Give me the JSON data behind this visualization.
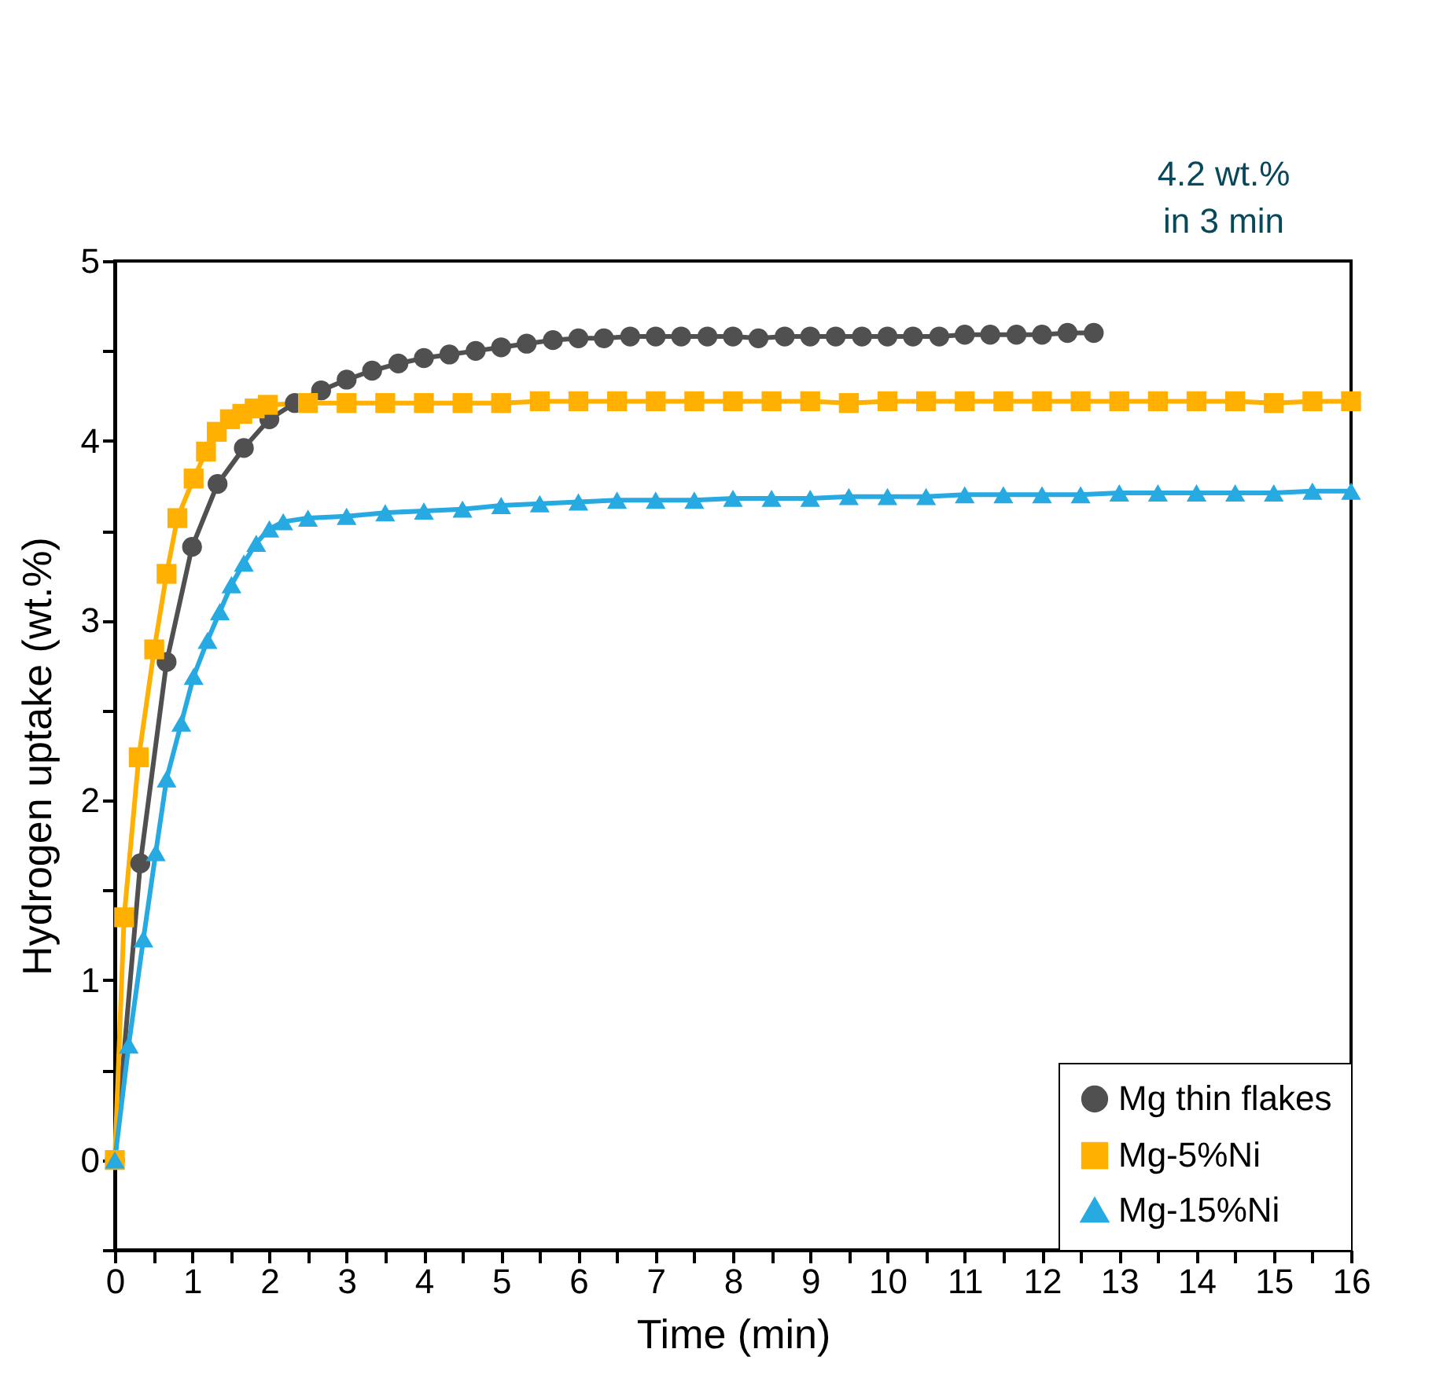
{
  "chart_data": {
    "type": "line",
    "xlabel": "Time (min)",
    "ylabel": "Hydrogen uptake (wt.%)",
    "xlim": [
      0,
      16
    ],
    "ylim": [
      -0.5,
      5
    ],
    "xticks": [
      0,
      {
        "value": 0.5,
        "label": null
      },
      1,
      {
        "value": 1.5,
        "label": null
      },
      2,
      {
        "value": 2.5,
        "label": null
      },
      3,
      {
        "value": 3.5,
        "label": null
      },
      4,
      {
        "value": 4.5,
        "label": null
      },
      5,
      {
        "value": 5.5,
        "label": null
      },
      6,
      {
        "value": 6.5,
        "label": null
      },
      7,
      {
        "value": 7.5,
        "label": null
      },
      8,
      {
        "value": 8.5,
        "label": null
      },
      9,
      {
        "value": 9.5,
        "label": null
      },
      10,
      {
        "value": 10.5,
        "label": null
      },
      11,
      {
        "value": 11.5,
        "label": null
      },
      12,
      {
        "value": 12.5,
        "label": null
      },
      13,
      {
        "value": 13.5,
        "label": null
      },
      14,
      {
        "value": 14.5,
        "label": null
      },
      15,
      {
        "value": 15.5,
        "label": null
      },
      16
    ],
    "yticks": [
      {
        "value": -0.5,
        "label": null
      },
      0,
      {
        "value": 0.5,
        "label": null
      },
      1,
      {
        "value": 1.5,
        "label": null
      },
      2,
      {
        "value": 2.5,
        "label": null
      },
      3,
      {
        "value": 3.5,
        "label": null
      },
      4,
      {
        "value": 4.5,
        "label": null
      },
      5
    ],
    "grid": false,
    "legend": "bottom right",
    "line_style": "solid",
    "annotations": [
      "4.2 wt.%\nin 3 min"
    ],
    "series": [
      {
        "name": "Mg thin flakes",
        "color": "#505050",
        "marker": "circle",
        "x": [
          0,
          0.33,
          0.67,
          1,
          1.33,
          1.67,
          2,
          2.33,
          2.67,
          3,
          3.33,
          3.67,
          4,
          4.33,
          4.67,
          5,
          5.33,
          5.67,
          6,
          6.33,
          6.67,
          7,
          7.33,
          7.67,
          8,
          8.33,
          8.67,
          9,
          9.33,
          9.67,
          10,
          10.33,
          10.67,
          11,
          11.33,
          11.67,
          12,
          12.33,
          12.67
        ],
        "values": [
          0,
          1.65,
          2.77,
          3.41,
          3.76,
          3.96,
          4.12,
          4.21,
          4.28,
          4.34,
          4.39,
          4.43,
          4.46,
          4.48,
          4.5,
          4.52,
          4.54,
          4.56,
          4.57,
          4.57,
          4.58,
          4.58,
          4.58,
          4.58,
          4.58,
          4.57,
          4.58,
          4.58,
          4.58,
          4.58,
          4.58,
          4.58,
          4.58,
          4.59,
          4.59,
          4.59,
          4.59,
          4.6,
          4.6
        ]
      },
      {
        "name": "Mg-5%Ni",
        "color": "#ffb000",
        "marker": "square",
        "x": [
          0,
          0.12,
          0.31,
          0.51,
          0.67,
          0.81,
          1.02,
          1.18,
          1.32,
          1.49,
          1.65,
          1.81,
          1.98,
          2.5,
          3,
          3.5,
          4,
          4.5,
          5,
          5.5,
          6,
          6.5,
          7,
          7.5,
          8,
          8.5,
          9,
          9.5,
          10,
          10.5,
          11,
          11.5,
          12,
          12.5,
          13,
          13.5,
          14,
          14.5,
          15,
          15.5,
          16
        ],
        "values": [
          0,
          1.35,
          2.24,
          2.84,
          3.26,
          3.57,
          3.79,
          3.94,
          4.05,
          4.12,
          4.15,
          4.18,
          4.2,
          4.21,
          4.21,
          4.21,
          4.21,
          4.21,
          4.21,
          4.22,
          4.22,
          4.22,
          4.22,
          4.22,
          4.22,
          4.22,
          4.22,
          4.21,
          4.22,
          4.22,
          4.22,
          4.22,
          4.22,
          4.22,
          4.22,
          4.22,
          4.22,
          4.22,
          4.21,
          4.22,
          4.22
        ]
      },
      {
        "name": "Mg-15%Ni",
        "color": "#27a9e1",
        "marker": "triangle",
        "x": [
          0,
          0.18,
          0.37,
          0.53,
          0.67,
          0.86,
          1.02,
          1.2,
          1.36,
          1.51,
          1.67,
          1.83,
          2,
          2.18,
          2.5,
          3,
          3.5,
          4,
          4.5,
          5,
          5.5,
          6,
          6.5,
          7,
          7.5,
          8,
          8.5,
          9,
          9.5,
          10,
          10.5,
          11,
          11.5,
          12,
          12.5,
          13,
          13.5,
          14,
          14.5,
          15,
          15.5,
          16
        ],
        "values": [
          0,
          0.64,
          1.23,
          1.71,
          2.12,
          2.43,
          2.69,
          2.89,
          3.05,
          3.2,
          3.32,
          3.43,
          3.51,
          3.55,
          3.57,
          3.58,
          3.6,
          3.61,
          3.62,
          3.64,
          3.65,
          3.66,
          3.67,
          3.67,
          3.67,
          3.68,
          3.68,
          3.68,
          3.69,
          3.69,
          3.69,
          3.7,
          3.7,
          3.7,
          3.7,
          3.71,
          3.71,
          3.71,
          3.71,
          3.71,
          3.72,
          3.72
        ]
      }
    ]
  }
}
